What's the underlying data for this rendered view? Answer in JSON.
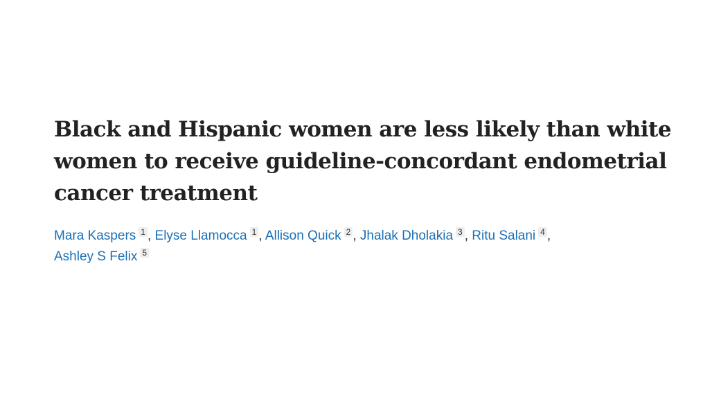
{
  "article": {
    "title": "Black and Hispanic women are less likely than white women to receive guideline-concordant endometrial cancer treatment",
    "authors": [
      {
        "name": "Mara Kaspers",
        "affiliation": "1"
      },
      {
        "name": "Elyse Llamocca",
        "affiliation": "1"
      },
      {
        "name": "Allison Quick",
        "affiliation": "2"
      },
      {
        "name": "Jhalak Dholakia",
        "affiliation": "3"
      },
      {
        "name": "Ritu Salani",
        "affiliation": "4"
      },
      {
        "name": "Ashley S Felix",
        "affiliation": "5"
      }
    ]
  }
}
